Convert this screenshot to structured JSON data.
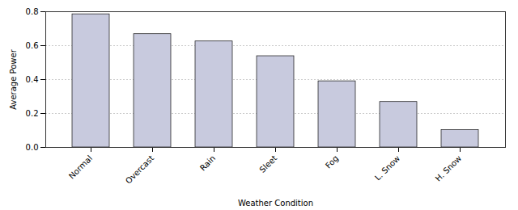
{
  "chart_data": {
    "type": "bar",
    "categories": [
      "Normal",
      "Overcast",
      "Rain",
      "Sleet",
      "Fog",
      "L. Snow",
      "H. Snow"
    ],
    "values": [
      0.785,
      0.668,
      0.625,
      0.538,
      0.39,
      0.268,
      0.103
    ],
    "color": "#c8cade",
    "xlabel": "Weather Condition",
    "ylabel": "Average Power",
    "ylim": [
      0,
      0.8
    ],
    "yticks": [
      {
        "value": 0,
        "label": "0.0"
      },
      0.2,
      0.4,
      0.6,
      0.8
    ],
    "grid": true
  }
}
